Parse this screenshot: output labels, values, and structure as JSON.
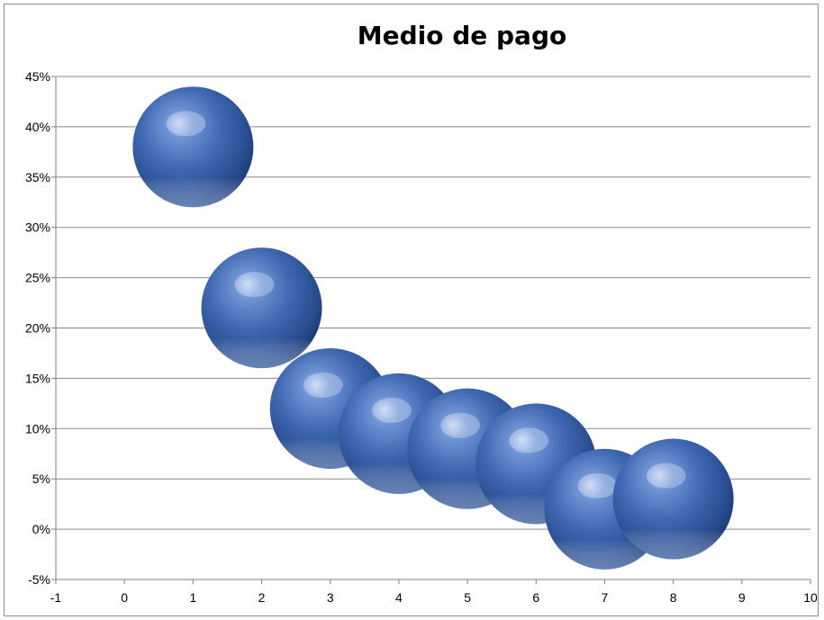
{
  "chart_data": {
    "type": "scatter",
    "variant": "bubble-3d",
    "title": "Medio de pago",
    "xlabel": "",
    "ylabel": "",
    "xlim": [
      -1,
      10
    ],
    "ylim": [
      -0.05,
      0.45
    ],
    "x_ticks": [
      "-1",
      "0",
      "1",
      "2",
      "3",
      "4",
      "5",
      "6",
      "7",
      "8",
      "9",
      "10"
    ],
    "y_ticks": [
      "45%",
      "40%",
      "35%",
      "30%",
      "25%",
      "20%",
      "15%",
      "10%",
      "5%",
      "0%",
      "-5%"
    ],
    "grid": "horizontal",
    "legend": "none",
    "bubble_color": "#4f81bd",
    "series": [
      {
        "points": [
          {
            "x": 1,
            "y": 0.38
          },
          {
            "x": 2,
            "y": 0.22
          },
          {
            "x": 3,
            "y": 0.12
          },
          {
            "x": 4,
            "y": 0.095
          },
          {
            "x": 5,
            "y": 0.08
          },
          {
            "x": 6,
            "y": 0.065
          },
          {
            "x": 7,
            "y": 0.02
          },
          {
            "x": 8,
            "y": 0.03
          }
        ]
      }
    ]
  }
}
